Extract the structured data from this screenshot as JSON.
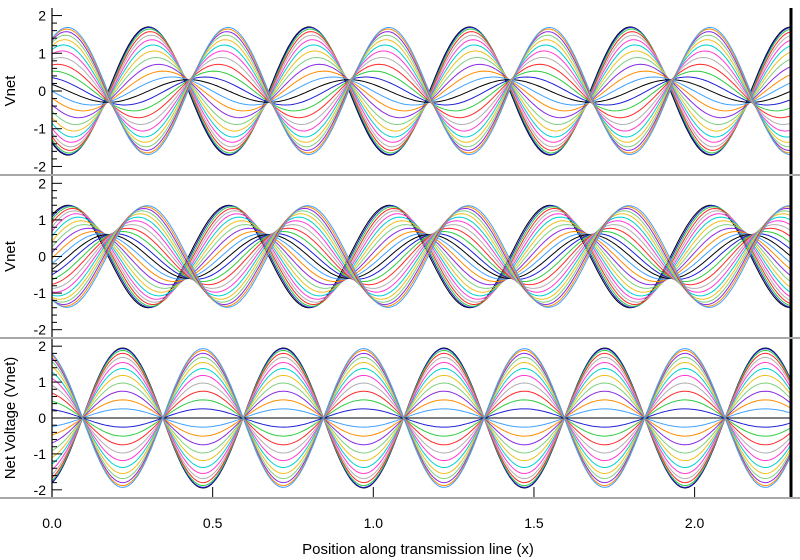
{
  "chart_data": [
    {
      "type": "line",
      "panel": "top",
      "ylabel": "Vnet",
      "xlabel": "",
      "xlim": [
        0.0,
        2.3
      ],
      "ylim": [
        -2.2,
        2.2
      ],
      "yticks": [
        -2,
        -1,
        0,
        1,
        2
      ],
      "wavelength": 0.5,
      "envelope": {
        "max": 1.7,
        "min": 0.3,
        "first_max_x": 0.3
      },
      "series_count": 24,
      "series_colors": [
        "#000000",
        "#1f1fd6",
        "#2ecc40",
        "#ff2a2a",
        "#b0b0b0",
        "#ff3bd6",
        "#00d0d0",
        "#f0c020",
        "#7fd07f",
        "#8a2be2",
        "#ff8c00",
        "#3fa0ff"
      ],
      "grid": false
    },
    {
      "type": "line",
      "panel": "middle",
      "ylabel": "Vnet",
      "xlabel": "",
      "xlim": [
        0.0,
        2.3
      ],
      "ylim": [
        -2.2,
        2.2
      ],
      "yticks": [
        -2,
        -1,
        0,
        1,
        2
      ],
      "wavelength": 0.5,
      "envelope": {
        "max": 1.4,
        "min": 0.6,
        "first_max_x": 0.05
      },
      "series_count": 24,
      "series_colors": [
        "#000000",
        "#1f1fd6",
        "#2ecc40",
        "#ff2a2a",
        "#b0b0b0",
        "#ff3bd6",
        "#00d0d0",
        "#f0c020",
        "#7fd07f",
        "#8a2be2",
        "#ff8c00",
        "#3fa0ff"
      ],
      "grid": false
    },
    {
      "type": "line",
      "panel": "bottom",
      "ylabel": "Net Voltage (Vnet)",
      "xlabel": "Position along transmission line (x)",
      "xlim": [
        0.0,
        2.3
      ],
      "ylim": [
        -2.2,
        2.2
      ],
      "yticks": [
        -2,
        -1,
        0,
        1,
        2
      ],
      "xticks": [
        "0.0",
        "0.5",
        "1.0",
        "1.5",
        "2.0"
      ],
      "xtick_values": [
        0.0,
        0.5,
        1.0,
        1.5,
        2.0
      ],
      "wavelength": 0.5,
      "envelope": {
        "max": 1.95,
        "min": 0.0,
        "first_max_x": 0.22
      },
      "series_count": 24,
      "series_colors": [
        "#000000",
        "#1f1fd6",
        "#2ecc40",
        "#ff2a2a",
        "#b0b0b0",
        "#ff3bd6",
        "#00d0d0",
        "#f0c020",
        "#7fd07f",
        "#8a2be2",
        "#ff8c00",
        "#3fa0ff"
      ],
      "grid": false
    }
  ]
}
